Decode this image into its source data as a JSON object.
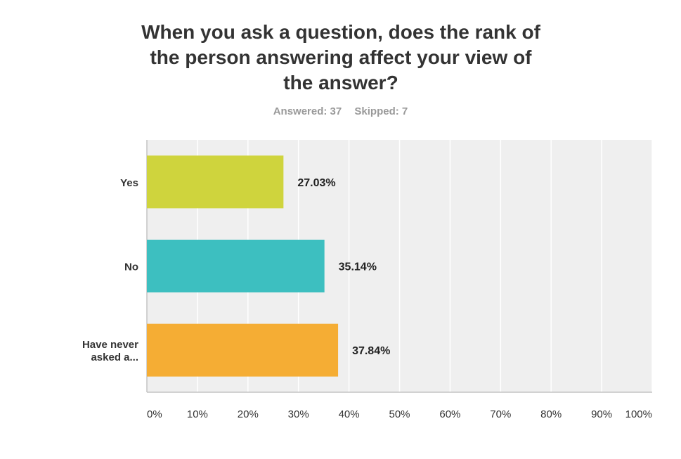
{
  "chart_data": {
    "type": "bar",
    "orientation": "horizontal",
    "title": [
      "When you ask a question, does the rank of",
      "the person answering affect your view of",
      "the answer?"
    ],
    "subtitle": {
      "answered": "Answered: 37",
      "skipped": "Skipped: 7"
    },
    "categories": [
      [
        "Yes"
      ],
      [
        "No"
      ],
      [
        "Have never",
        "asked a..."
      ]
    ],
    "values": [
      27.03,
      35.14,
      37.84
    ],
    "value_labels": [
      "27.03%",
      "35.14%",
      "37.84%"
    ],
    "colors": [
      "#cfd43d",
      "#3dbfc0",
      "#f5ad34"
    ],
    "xlim": [
      0,
      100
    ],
    "xticks": [
      0,
      10,
      20,
      30,
      40,
      50,
      60,
      70,
      80,
      90,
      100
    ],
    "xtick_labels": [
      "0%",
      "10%",
      "20%",
      "30%",
      "40%",
      "50%",
      "60%",
      "70%",
      "80%",
      "90%",
      "100%"
    ],
    "grid": true,
    "plot_background": "#efefef"
  }
}
